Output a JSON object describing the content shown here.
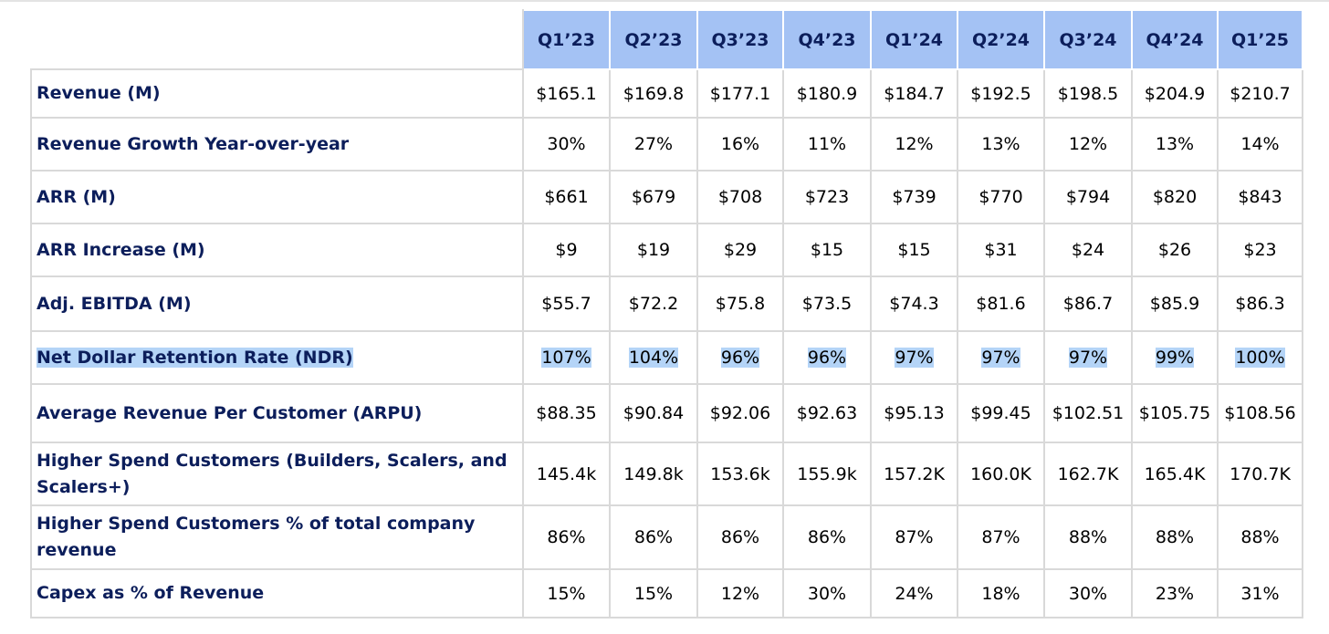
{
  "table": {
    "headers": [
      "Q1’23",
      "Q2’23",
      "Q3’23",
      "Q4’23",
      "Q1’24",
      "Q2’24",
      "Q3’24",
      "Q4’24",
      "Q1’25"
    ],
    "rows": [
      {
        "label": "Revenue (M)",
        "values": [
          "$165.1",
          "$169.8",
          "$177.1",
          "$180.9",
          "$184.7",
          "$192.5",
          "$198.5",
          "$204.9",
          "$210.7"
        ]
      },
      {
        "label": "Revenue Growth Year-over-year",
        "values": [
          "30%",
          "27%",
          "16%",
          "11%",
          "12%",
          "13%",
          "12%",
          "13%",
          "14%"
        ]
      },
      {
        "label": "ARR (M)",
        "values": [
          "$661",
          "$679",
          "$708",
          "$723",
          "$739",
          "$770",
          "$794",
          "$820",
          "$843"
        ]
      },
      {
        "label": "ARR Increase (M)",
        "values": [
          "$9",
          "$19",
          "$29",
          "$15",
          "$15",
          "$31",
          "$24",
          "$26",
          "$23"
        ]
      },
      {
        "label": "Adj. EBITDA (M)",
        "values": [
          "$55.7",
          "$72.2",
          "$75.8",
          "$73.5",
          "$74.3",
          "$81.6",
          "$86.7",
          "$85.9",
          "$86.3"
        ]
      },
      {
        "label": "Net Dollar Retention Rate (NDR)",
        "values": [
          "107%",
          "104%",
          "96%",
          "96%",
          "97%",
          "97%",
          "97%",
          "99%",
          "100%"
        ],
        "highlighted": true
      },
      {
        "label": "Average Revenue Per Customer (ARPU)",
        "values": [
          "$88.35",
          "$90.84",
          "$92.06",
          "$92.63",
          "$95.13",
          "$99.45",
          "$102.51",
          "$105.75",
          "$108.56"
        ]
      },
      {
        "label": "Higher Spend Customers (Builders, Scalers, and Scalers+)",
        "values": [
          "145.4k",
          "149.8k",
          "153.6k",
          "155.9k",
          "157.2K",
          "160.0K",
          "162.7K",
          "165.4K",
          "170.7K"
        ]
      },
      {
        "label": "Higher Spend Customers % of total company revenue",
        "values": [
          "86%",
          "86%",
          "86%",
          "86%",
          "87%",
          "87%",
          "88%",
          "88%",
          "88%"
        ]
      },
      {
        "label": "Capex as % of Revenue",
        "values": [
          "15%",
          "15%",
          "12%",
          "30%",
          "24%",
          "18%",
          "30%",
          "23%",
          "31%"
        ]
      }
    ],
    "colors": {
      "header_bg": "#a4c2f4",
      "label_text": "#0c1e5b",
      "selection_highlight": "#b4d4f7",
      "grid": "#d9d9d9"
    }
  }
}
